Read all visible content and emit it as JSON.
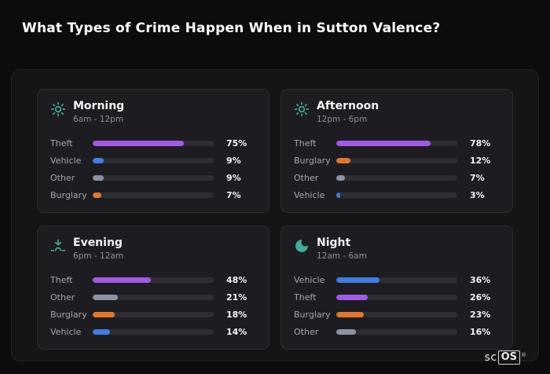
{
  "title": "What Types of Crime Happen When in Sutton Valence?",
  "logo": {
    "prefix": "sc",
    "boxed": "OS",
    "reg": "®"
  },
  "colors": {
    "icon_accent": "#3fae9a",
    "theft": "#a259e4",
    "vehicle": "#3d7de4",
    "other": "#8b93a3",
    "burglary": "#e2762a",
    "track": "#2d2d33",
    "card_bg": "#1d1d21",
    "panel_bg": "#151518",
    "page_bg": "#0c0c0e"
  },
  "chart_data": [
    {
      "type": "bar",
      "orientation": "horizontal",
      "title": "Morning",
      "subtitle": "6am - 12pm",
      "icon": "sun-icon",
      "categories": [
        "Theft",
        "Vehicle",
        "Other",
        "Burglary"
      ],
      "values": [
        75,
        9,
        9,
        7
      ],
      "value_labels": [
        "75%",
        "9%",
        "9%",
        "7%"
      ],
      "bar_colors": [
        "#a259e4",
        "#3d7de4",
        "#8b93a3",
        "#e2762a"
      ],
      "xlim": [
        0,
        100
      ],
      "unit": "%"
    },
    {
      "type": "bar",
      "orientation": "horizontal",
      "title": "Afternoon",
      "subtitle": "12pm - 6pm",
      "icon": "sun-icon",
      "categories": [
        "Theft",
        "Burglary",
        "Other",
        "Vehicle"
      ],
      "values": [
        78,
        12,
        7,
        3
      ],
      "value_labels": [
        "78%",
        "12%",
        "7%",
        "3%"
      ],
      "bar_colors": [
        "#a259e4",
        "#e2762a",
        "#8b93a3",
        "#3d7de4"
      ],
      "xlim": [
        0,
        100
      ],
      "unit": "%"
    },
    {
      "type": "bar",
      "orientation": "horizontal",
      "title": "Evening",
      "subtitle": "6pm - 12am",
      "icon": "sunset-icon",
      "categories": [
        "Theft",
        "Other",
        "Burglary",
        "Vehicle"
      ],
      "values": [
        48,
        21,
        18,
        14
      ],
      "value_labels": [
        "48%",
        "21%",
        "18%",
        "14%"
      ],
      "bar_colors": [
        "#a259e4",
        "#8b93a3",
        "#e2762a",
        "#3d7de4"
      ],
      "xlim": [
        0,
        100
      ],
      "unit": "%"
    },
    {
      "type": "bar",
      "orientation": "horizontal",
      "title": "Night",
      "subtitle": "12am - 6am",
      "icon": "moon-icon",
      "categories": [
        "Vehicle",
        "Theft",
        "Burglary",
        "Other"
      ],
      "values": [
        36,
        26,
        23,
        16
      ],
      "value_labels": [
        "36%",
        "26%",
        "23%",
        "16%"
      ],
      "bar_colors": [
        "#3d7de4",
        "#a259e4",
        "#e2762a",
        "#8b93a3"
      ],
      "xlim": [
        0,
        100
      ],
      "unit": "%"
    }
  ]
}
